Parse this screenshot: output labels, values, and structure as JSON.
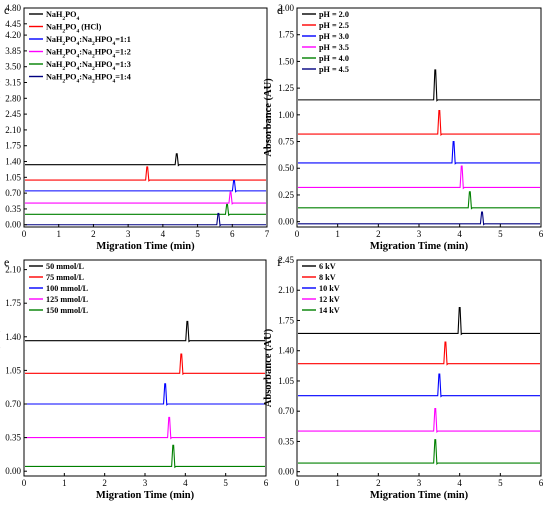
{
  "chart_data": [
    {
      "panel": "c",
      "type": "line",
      "xlabel": "Migration Time (min)",
      "ylabel": "Absorbance (AU)",
      "xlim": [
        0,
        7
      ],
      "ylim": [
        -0.05,
        4.8
      ],
      "yticks": [
        0.0,
        0.35,
        0.7,
        1.05,
        1.4,
        1.75,
        2.1,
        2.45,
        2.8,
        3.15,
        3.5,
        3.85,
        4.2,
        4.45,
        4.8
      ],
      "yticks_labels": [
        "0.00",
        "0.35",
        "0.70",
        "1.05",
        "1.40",
        "1.75",
        "2.10",
        "2.45",
        "2.80",
        "3.15",
        "3.50",
        "3.85",
        "4.20",
        "4.45",
        "4.80"
      ],
      "xticks": [
        0,
        1,
        2,
        3,
        4,
        5,
        6,
        7
      ],
      "legend_position": "top-left",
      "series": [
        {
          "name": "NaH2PO4",
          "label_main": "NaH",
          "label_parts": [
            [
              "NaH",
              ""
            ],
            [
              "2",
              "sub"
            ],
            [
              "PO",
              ""
            ],
            [
              "4",
              "sub"
            ]
          ],
          "color": "#000000",
          "baseline": 1.33,
          "peak_x": 4.4,
          "peak_height": 0.24
        },
        {
          "name": "NaH2PO4 (HCl)",
          "label_parts": [
            [
              "NaH",
              ""
            ],
            [
              "2",
              "sub"
            ],
            [
              "PO",
              ""
            ],
            [
              "4",
              "sub"
            ],
            [
              " (HCl)",
              ""
            ]
          ],
          "color": "#ff0000",
          "baseline": 0.99,
          "peak_x": 3.55,
          "peak_height": 0.29
        },
        {
          "name": "NaH2PO4:Na2HPO4=1:1",
          "label_parts": [
            [
              "NaH",
              ""
            ],
            [
              "2",
              "sub"
            ],
            [
              "PO",
              ""
            ],
            [
              "4",
              "sub"
            ],
            [
              ":Na",
              ""
            ],
            [
              "2",
              "sub"
            ],
            [
              "HPO",
              ""
            ],
            [
              "4",
              "sub"
            ],
            [
              "=1:1",
              ""
            ]
          ],
          "color": "#0000ff",
          "baseline": 0.75,
          "peak_x": 6.05,
          "peak_height": 0.23
        },
        {
          "name": "NaH2PO4:Na2HPO4=1:2",
          "label_parts": [
            [
              "NaH",
              ""
            ],
            [
              "2",
              "sub"
            ],
            [
              "PO",
              ""
            ],
            [
              "4",
              "sub"
            ],
            [
              ":Na",
              ""
            ],
            [
              "2",
              "sub"
            ],
            [
              "HPO",
              ""
            ],
            [
              "4",
              "sub"
            ],
            [
              "=1:2",
              ""
            ]
          ],
          "color": "#ff00ff",
          "baseline": 0.48,
          "peak_x": 5.95,
          "peak_height": 0.24
        },
        {
          "name": "NaH2PO4:Na2HPO4=1:3",
          "label_parts": [
            [
              "NaH",
              ""
            ],
            [
              "2",
              "sub"
            ],
            [
              "PO",
              ""
            ],
            [
              "4",
              "sub"
            ],
            [
              ":Na",
              ""
            ],
            [
              "2",
              "sub"
            ],
            [
              "HPO",
              ""
            ],
            [
              "4",
              "sub"
            ],
            [
              "=1:3",
              ""
            ]
          ],
          "color": "#008000",
          "baseline": 0.23,
          "peak_x": 5.85,
          "peak_height": 0.22
        },
        {
          "name": "NaH2PO4:Na2HPO4=1:4",
          "label_parts": [
            [
              "NaH",
              ""
            ],
            [
              "2",
              "sub"
            ],
            [
              "PO",
              ""
            ],
            [
              "4",
              "sub"
            ],
            [
              ":Na",
              ""
            ],
            [
              "2",
              "sub"
            ],
            [
              "HPO",
              ""
            ],
            [
              "4",
              "sub"
            ],
            [
              "=1:4",
              ""
            ]
          ],
          "color": "#000080",
          "baseline": 0.0,
          "peak_x": 5.6,
          "peak_height": 0.25
        }
      ]
    },
    {
      "panel": "d",
      "type": "line",
      "xlabel": "Migration Time (min)",
      "ylabel": "Absorbance (AU)",
      "xlim": [
        0,
        6
      ],
      "ylim": [
        -0.05,
        2.0
      ],
      "yticks": [
        0.0,
        0.25,
        0.5,
        0.75,
        1.0,
        1.25,
        1.5,
        1.75,
        2.0
      ],
      "yticks_labels": [
        "0.00",
        "0.25",
        "0.50",
        "0.75",
        "1.00",
        "1.25",
        "1.50",
        "1.75",
        "2.00"
      ],
      "xticks": [
        0,
        1,
        2,
        3,
        4,
        5,
        6
      ],
      "legend_position": "top-left",
      "series": [
        {
          "name": "pH = 2.0",
          "color": "#000000",
          "baseline": 1.14,
          "peak_x": 3.4,
          "peak_height": 0.28
        },
        {
          "name": "pH = 2.5",
          "color": "#ff0000",
          "baseline": 0.82,
          "peak_x": 3.5,
          "peak_height": 0.22
        },
        {
          "name": "pH = 3.0",
          "color": "#0000ff",
          "baseline": 0.55,
          "peak_x": 3.85,
          "peak_height": 0.2
        },
        {
          "name": "pH = 3.5",
          "color": "#ff00ff",
          "baseline": 0.32,
          "peak_x": 4.05,
          "peak_height": 0.2
        },
        {
          "name": "pH = 4.0",
          "color": "#008000",
          "baseline": 0.13,
          "peak_x": 4.25,
          "peak_height": 0.15
        },
        {
          "name": "pH = 4.5",
          "color": "#000080",
          "baseline": -0.02,
          "peak_x": 4.55,
          "peak_height": 0.11
        }
      ]
    },
    {
      "panel": "e",
      "type": "line",
      "xlabel": "Migration Time (min)",
      "ylabel": "Absorbance (AU)",
      "xlim": [
        0,
        6
      ],
      "ylim": [
        -0.05,
        2.2
      ],
      "yticks": [
        0.0,
        0.35,
        0.7,
        1.05,
        1.4,
        1.75,
        2.1
      ],
      "yticks_labels": [
        "0.00",
        "0.35",
        "0.70",
        "1.05",
        "1.40",
        "1.75",
        "2.10"
      ],
      "xticks": [
        0,
        1,
        2,
        3,
        4,
        5,
        6
      ],
      "legend_position": "top-left",
      "series": [
        {
          "name": "50 mmol/L",
          "color": "#000000",
          "baseline": 1.36,
          "peak_x": 4.05,
          "peak_height": 0.2
        },
        {
          "name": "75 mmol/L",
          "color": "#ff0000",
          "baseline": 1.02,
          "peak_x": 3.9,
          "peak_height": 0.2
        },
        {
          "name": "100 mmol/L",
          "color": "#0000ff",
          "baseline": 0.7,
          "peak_x": 3.5,
          "peak_height": 0.21
        },
        {
          "name": "125 mmol/L",
          "color": "#ff00ff",
          "baseline": 0.35,
          "peak_x": 3.6,
          "peak_height": 0.21
        },
        {
          "name": "150 mmol/L",
          "color": "#008000",
          "baseline": 0.05,
          "peak_x": 3.7,
          "peak_height": 0.22
        }
      ]
    },
    {
      "panel": "f",
      "type": "line",
      "xlabel": "Migration Time (min)",
      "ylabel": "Absorbance (AU)",
      "xlim": [
        0,
        6
      ],
      "ylim": [
        -0.05,
        2.45
      ],
      "yticks": [
        0.0,
        0.35,
        0.7,
        1.05,
        1.4,
        1.75,
        2.1,
        2.45
      ],
      "yticks_labels": [
        "0.00",
        "0.35",
        "0.70",
        "1.05",
        "1.40",
        "1.75",
        "2.10",
        "2.45"
      ],
      "xticks": [
        0,
        1,
        2,
        3,
        4,
        5,
        6
      ],
      "legend_position": "top-left",
      "series": [
        {
          "name": "6 kV",
          "color": "#000000",
          "baseline": 1.6,
          "peak_x": 4.0,
          "peak_height": 0.3
        },
        {
          "name": "8 kV",
          "color": "#ff0000",
          "baseline": 1.25,
          "peak_x": 3.65,
          "peak_height": 0.25
        },
        {
          "name": "10 kV",
          "color": "#0000ff",
          "baseline": 0.88,
          "peak_x": 3.5,
          "peak_height": 0.25
        },
        {
          "name": "12 kV",
          "color": "#ff00ff",
          "baseline": 0.47,
          "peak_x": 3.4,
          "peak_height": 0.26
        },
        {
          "name": "14 kV",
          "color": "#008000",
          "baseline": 0.1,
          "peak_x": 3.4,
          "peak_height": 0.27
        }
      ]
    }
  ]
}
